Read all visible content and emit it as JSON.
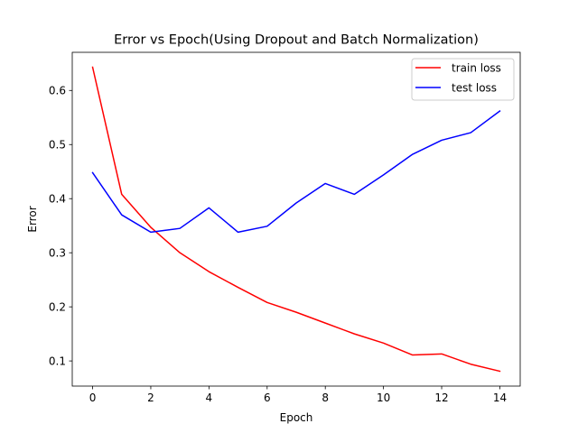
{
  "chart_data": {
    "type": "line",
    "title": "Error vs Epoch(Using Dropout and Batch Normalization)",
    "xlabel": "Epoch",
    "ylabel": "Error",
    "x": [
      0,
      1,
      2,
      3,
      4,
      5,
      6,
      7,
      8,
      9,
      10,
      11,
      12,
      13,
      14
    ],
    "xlim": [
      -0.7,
      14.7
    ],
    "ylim": [
      0.0535,
      0.6705
    ],
    "xticks": [
      0,
      2,
      4,
      6,
      8,
      10,
      12,
      14
    ],
    "xtick_labels": [
      "0",
      "2",
      "4",
      "6",
      "8",
      "10",
      "12",
      "14"
    ],
    "yticks": [
      0.1,
      0.2,
      0.3,
      0.4,
      0.5,
      0.6
    ],
    "ytick_labels": [
      "0.1",
      "0.2",
      "0.3",
      "0.4",
      "0.5",
      "0.6"
    ],
    "grid": false,
    "legend_position": "top-right",
    "series": [
      {
        "name": "train loss",
        "color": "#ff0000",
        "values": [
          0.643,
          0.408,
          0.347,
          0.3,
          0.265,
          0.236,
          0.208,
          0.19,
          0.17,
          0.15,
          0.133,
          0.111,
          0.113,
          0.094,
          0.081
        ]
      },
      {
        "name": "test loss",
        "color": "#0000ff",
        "values": [
          0.448,
          0.37,
          0.338,
          0.345,
          0.383,
          0.338,
          0.349,
          0.392,
          0.428,
          0.408,
          0.444,
          0.482,
          0.508,
          0.522,
          0.562
        ]
      }
    ]
  }
}
